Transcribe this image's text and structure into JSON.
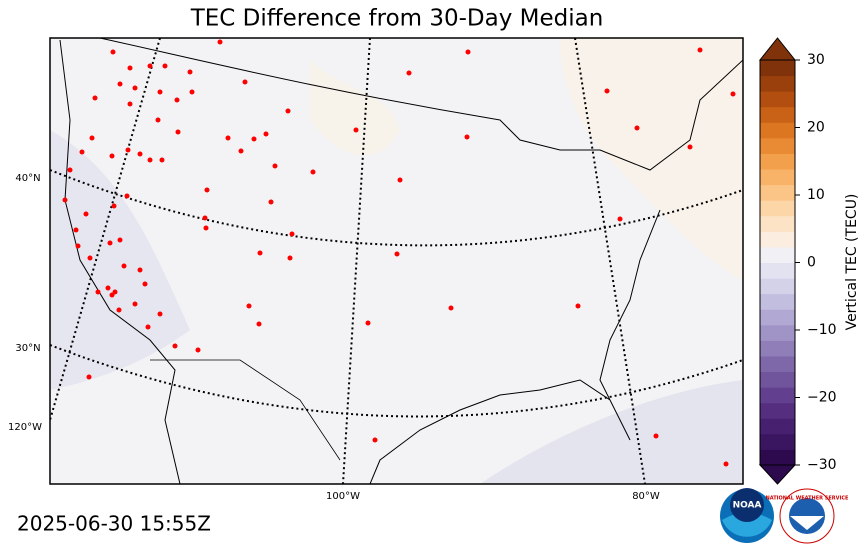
{
  "title": "TEC Difference from 30-Day Median",
  "map": {
    "lat_labels": [
      "40°N",
      "30°N"
    ],
    "lon_labels": [
      "120°W",
      "100°W",
      "80°W"
    ]
  },
  "colorbar": {
    "label": "Vertical TEC (TECU)",
    "lim": [
      -30,
      30
    ],
    "ticks": [
      {
        "value": -30,
        "label": "−30"
      },
      {
        "value": -20,
        "label": "−20"
      },
      {
        "value": -10,
        "label": "−10"
      },
      0,
      10,
      20,
      30
    ],
    "colors": [
      "#2d0a4e",
      "#3a1560",
      "#472170",
      "#552e80",
      "#62408f",
      "#70549c",
      "#7f68aa",
      "#8f7eb8",
      "#a094c6",
      "#b1a9d3",
      "#c2bedf",
      "#d3d2e9",
      "#e3e2f1",
      "#f1f1f5",
      "#fbeee0",
      "#fde3c6",
      "#fdd6a8",
      "#fcc588",
      "#f9b368",
      "#f3a04c",
      "#e98b34",
      "#dc7621",
      "#c96216",
      "#b24f10",
      "#99400c",
      "#80330b"
    ]
  },
  "timestamp": "2025-06-30 15:55Z",
  "logos": {
    "noaa": "NOAA",
    "nws": "NATIONAL WEATHER SERVICE"
  }
}
